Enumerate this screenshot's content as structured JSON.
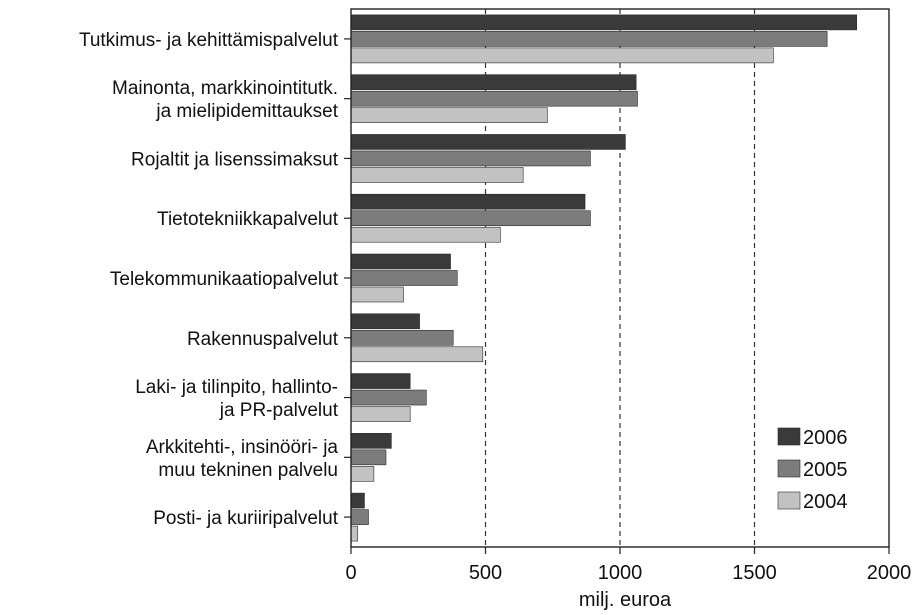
{
  "chart_data": {
    "type": "bar",
    "orientation": "horizontal",
    "categories": [
      [
        "Tutkimus- ja kehittämispalvelut"
      ],
      [
        "Mainonta, markkinointitutk.",
        "ja mielipidemittaukset"
      ],
      [
        "Rojaltit ja lisenssimaksut"
      ],
      [
        "Tietotekniikkapalvelut"
      ],
      [
        "Telekommunikaatiopalvelut"
      ],
      [
        "Rakennuspalvelut"
      ],
      [
        "Laki- ja tilinpito, hallinto-",
        "ja PR-palvelut"
      ],
      [
        "Arkkitehti-, insinööri- ja",
        "muu tekninen palvelu"
      ],
      [
        "Posti- ja kuriiripalvelut"
      ]
    ],
    "series": [
      {
        "name": "2006",
        "color": "#3a3a3a",
        "values": [
          1880,
          1060,
          1020,
          870,
          370,
          255,
          220,
          150,
          50
        ]
      },
      {
        "name": "2005",
        "color": "#7c7c7c",
        "values": [
          1770,
          1065,
          890,
          890,
          395,
          380,
          280,
          130,
          65
        ]
      },
      {
        "name": "2004",
        "color": "#c2c2c2",
        "values": [
          1570,
          730,
          640,
          555,
          195,
          490,
          220,
          85,
          25
        ]
      }
    ],
    "x_ticks": [
      "0",
      "500",
      "1000",
      "1500",
      "2000"
    ],
    "xlim": [
      0,
      2000
    ],
    "xlabel": "milj. euroa",
    "ylabel": "",
    "title": "",
    "grid": "vertical dashed at 500, 1000, 1500",
    "legend_position": "bottom-right"
  }
}
